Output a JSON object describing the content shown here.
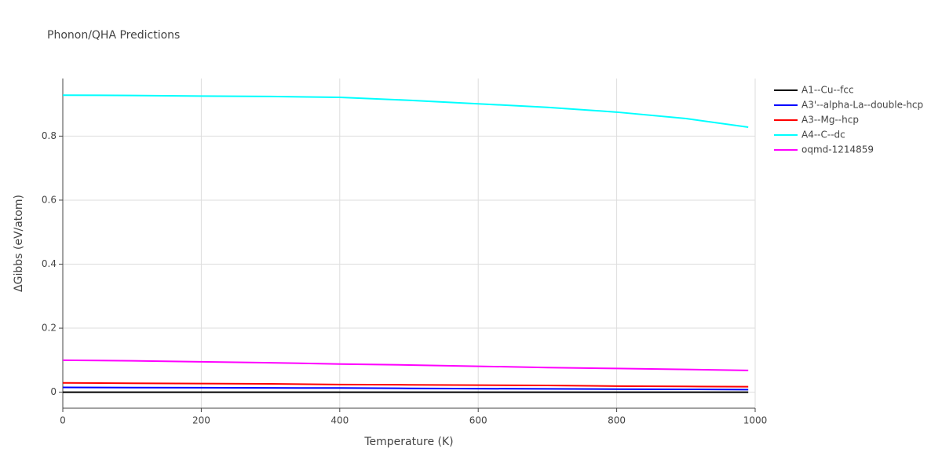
{
  "chart_data": {
    "type": "line",
    "title": "Phonon/QHA Predictions",
    "x_label": "Temperature (K)",
    "y_label": "ΔGibbs (eV/atom)",
    "x": [
      0,
      100,
      200,
      300,
      400,
      500,
      600,
      700,
      800,
      900,
      990
    ],
    "series": [
      {
        "name": "A1--Cu--fcc",
        "color": "#000000",
        "values": [
          0,
          0,
          0,
          0,
          0,
          0,
          0,
          0,
          0,
          0,
          0
        ]
      },
      {
        "name": "A3'--alpha-La--double-hcp",
        "color": "#0000ff",
        "values": [
          0.015,
          0.0145,
          0.014,
          0.0135,
          0.013,
          0.012,
          0.011,
          0.0105,
          0.0095,
          0.009,
          0.008
        ]
      },
      {
        "name": "A3--Mg--hcp",
        "color": "#ff0000",
        "values": [
          0.029,
          0.028,
          0.027,
          0.026,
          0.024,
          0.023,
          0.022,
          0.021,
          0.019,
          0.018,
          0.017
        ]
      },
      {
        "name": "A4--C--dc",
        "color": "#00ffff",
        "values": [
          0.928,
          0.927,
          0.925,
          0.924,
          0.921,
          0.912,
          0.901,
          0.89,
          0.875,
          0.855,
          0.828
        ]
      },
      {
        "name": "oqmd-1214859",
        "color": "#ff00ff",
        "values": [
          0.1,
          0.098,
          0.095,
          0.092,
          0.088,
          0.085,
          0.081,
          0.077,
          0.074,
          0.071,
          0.068
        ]
      }
    ],
    "xlim": [
      0,
      1000
    ],
    "xticks": [
      0,
      200,
      400,
      600,
      800,
      1000
    ],
    "ylim": [
      -0.05,
      0.98
    ],
    "yticks": [
      0,
      0.2,
      0.4,
      0.6,
      0.8
    ],
    "grid": true,
    "legend": "right"
  }
}
